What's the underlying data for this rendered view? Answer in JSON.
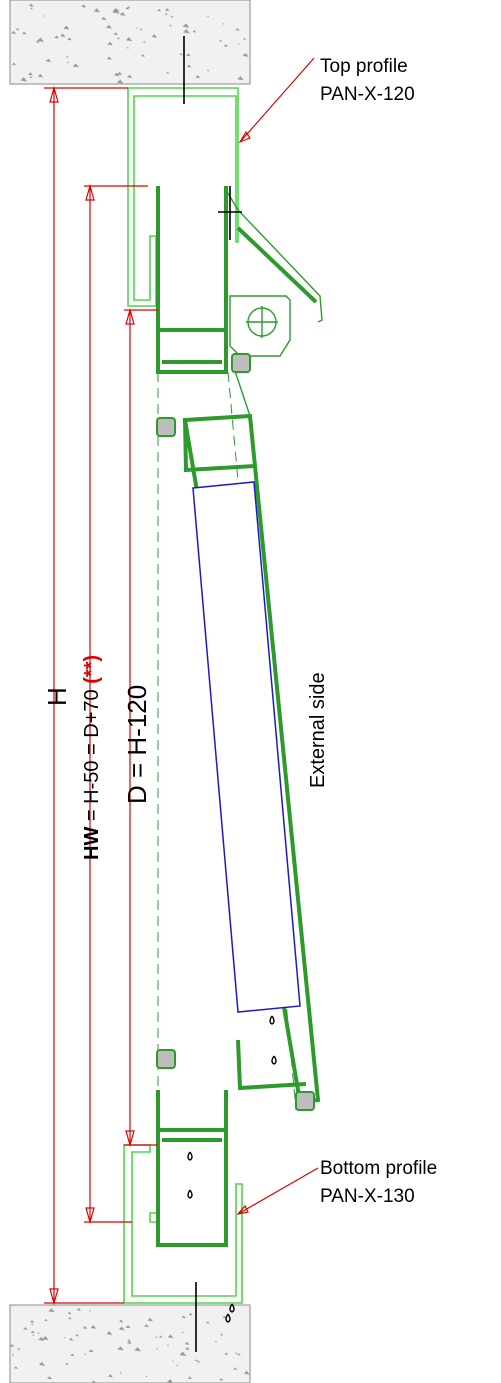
{
  "labels": {
    "top_profile_name": "Top profile",
    "top_profile_code": "PAN-X-120",
    "bottom_profile_name": "Bottom profile",
    "bottom_profile_code": "PAN-X-130",
    "external_side": "External side"
  },
  "dimensions": {
    "overall": "H",
    "hw_bold": "HW",
    "hw_formula": " = H-50 = D+70 ",
    "hw_note": "(**)",
    "d_formula": "D = H-120"
  },
  "colors": {
    "frame": "#4cd84c",
    "profile": "#2e9a2e",
    "glass": "#1a1acc",
    "dimension": "#e00000",
    "concrete": "#f1f1f1"
  }
}
